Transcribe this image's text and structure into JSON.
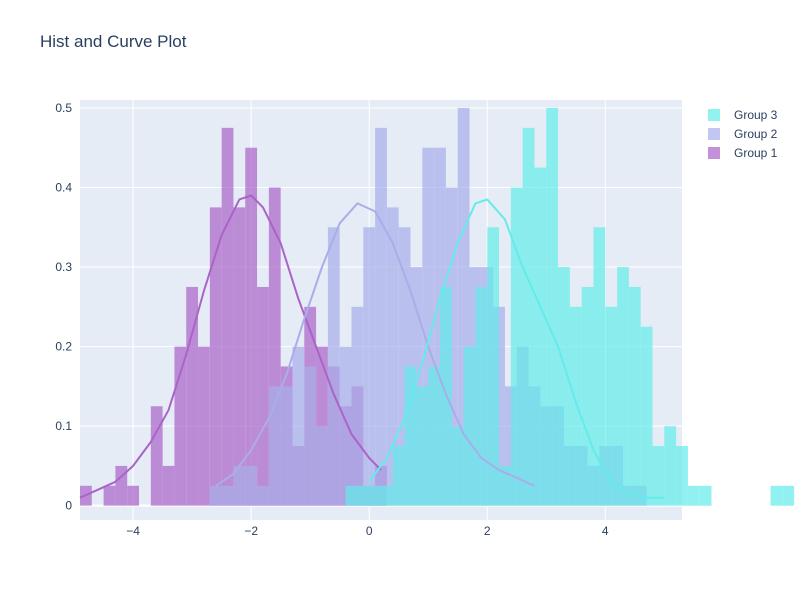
{
  "chart_data": {
    "type": "histogram",
    "title": "Hist and Curve Plot",
    "xlabel": "",
    "ylabel": "",
    "xlim": [
      -4.9,
      5.3
    ],
    "ylim": [
      -0.018,
      0.51
    ],
    "x_ticks": [
      -4,
      -2,
      0,
      2,
      4
    ],
    "x_tick_labels": [
      "−4",
      "−2",
      "0",
      "2",
      "4"
    ],
    "y_ticks": [
      0,
      0.1,
      0.2,
      0.3,
      0.4,
      0.5
    ],
    "y_tick_labels": [
      "0",
      "0.1",
      "0.2",
      "0.3",
      "0.4",
      "0.5"
    ],
    "grid": true,
    "legend_position": "top-right",
    "bin_width": 0.2,
    "series": [
      {
        "name": "Group 1",
        "color": "#ab63c8",
        "bin_start": -4.9,
        "heights": [
          0.025,
          0,
          0.025,
          0.05,
          0.025,
          0,
          0.125,
          0.05,
          0.2,
          0.275,
          0.2,
          0.375,
          0.475,
          0.375,
          0.45,
          0.275,
          0.4,
          0.175,
          0.075,
          0.25,
          0.2,
          0.175,
          0.125,
          0.15,
          0.025,
          0.05
        ],
        "curve_x": [
          -4.9,
          -4.6,
          -4.3,
          -4.0,
          -3.7,
          -3.4,
          -3.1,
          -2.8,
          -2.5,
          -2.2,
          -2.0,
          -1.8,
          -1.5,
          -1.2,
          -0.9,
          -0.6,
          -0.3,
          0.0,
          0.2
        ],
        "curve_y": [
          0.01,
          0.02,
          0.03,
          0.05,
          0.08,
          0.12,
          0.19,
          0.27,
          0.34,
          0.385,
          0.39,
          0.375,
          0.33,
          0.26,
          0.2,
          0.14,
          0.09,
          0.06,
          0.045
        ]
      },
      {
        "name": "Group 2",
        "color": "#a9aeea",
        "bin_start": -2.7,
        "heights": [
          0.025,
          0.025,
          0.05,
          0.05,
          0.025,
          0.15,
          0.15,
          0.2,
          0.175,
          0.1,
          0.35,
          0.2,
          0.25,
          0.35,
          0.475,
          0.375,
          0.35,
          0.3,
          0.45,
          0.45,
          0.4,
          0.5,
          0.3,
          0.3,
          0.25,
          0.15,
          0.2,
          0.15,
          0.125,
          0.125,
          0.075,
          0.075,
          0.05,
          0.075,
          0.075,
          0.025,
          0.025
        ],
        "curve_x": [
          -2.6,
          -2.3,
          -2.0,
          -1.7,
          -1.4,
          -1.1,
          -0.8,
          -0.5,
          -0.2,
          0.1,
          0.4,
          0.7,
          1.0,
          1.3,
          1.6,
          1.9,
          2.2,
          2.5,
          2.8
        ],
        "curve_y": [
          0.025,
          0.04,
          0.07,
          0.11,
          0.165,
          0.235,
          0.3,
          0.355,
          0.38,
          0.37,
          0.33,
          0.27,
          0.2,
          0.14,
          0.09,
          0.06,
          0.045,
          0.035,
          0.025
        ]
      },
      {
        "name": "Group 3",
        "color": "#63ecea",
        "bin_start": -0.4,
        "heights": [
          0.025,
          0.025,
          0.025,
          0.025,
          0.075,
          0.175,
          0.15,
          0.175,
          0.275,
          0.1,
          0.2,
          0.275,
          0.35,
          0.05,
          0.4,
          0.475,
          0.425,
          0.5,
          0.3,
          0.25,
          0.275,
          0.35,
          0.25,
          0.3,
          0.275,
          0.225,
          0.075,
          0.1,
          0.075,
          0.025,
          0.025,
          0,
          0,
          0,
          0,
          0,
          0.025,
          0.025
        ],
        "curve_x": [
          0.0,
          0.3,
          0.6,
          0.9,
          1.2,
          1.5,
          1.8,
          2.0,
          2.3,
          2.6,
          2.9,
          3.2,
          3.5,
          3.8,
          4.1,
          4.4,
          4.7,
          5.0
        ],
        "curve_y": [
          0.03,
          0.06,
          0.11,
          0.18,
          0.26,
          0.33,
          0.38,
          0.385,
          0.36,
          0.3,
          0.25,
          0.2,
          0.13,
          0.07,
          0.03,
          0.015,
          0.01,
          0.01
        ]
      }
    ]
  }
}
